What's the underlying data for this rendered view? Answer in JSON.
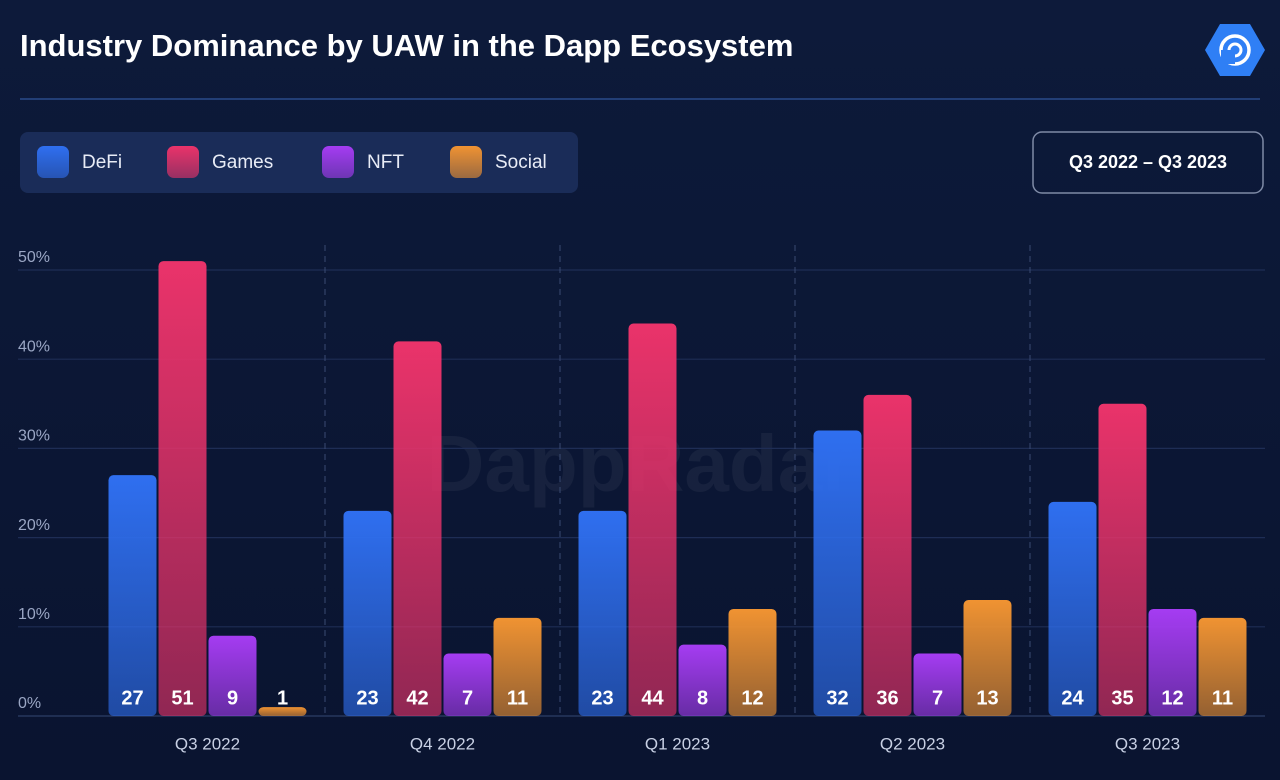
{
  "chart_data": {
    "type": "bar",
    "title": "Industry Dominance by UAW in the Dapp Ecosystem",
    "period": "Q3 2022 – Q3 2023",
    "watermark": "DappRadar",
    "categories": [
      "Q3 2022",
      "Q4 2022",
      "Q1 2023",
      "Q2 2023",
      "Q3 2023"
    ],
    "series": [
      {
        "name": "DeFi",
        "color": "#2f6ff0",
        "values": [
          27,
          23,
          23,
          32,
          24
        ]
      },
      {
        "name": "Games",
        "color": "#ea336a",
        "values": [
          51,
          42,
          44,
          36,
          35
        ]
      },
      {
        "name": "NFT",
        "color": "#a53cf2",
        "values": [
          9,
          7,
          8,
          7,
          12
        ]
      },
      {
        "name": "Social",
        "color": "#f09332",
        "values": [
          1,
          11,
          12,
          13,
          11
        ]
      }
    ],
    "ylim": [
      0,
      50
    ],
    "yticks": [
      {
        "value": 0,
        "label": "0%"
      },
      {
        "value": 10,
        "label": "10%"
      },
      {
        "value": 20,
        "label": "20%"
      },
      {
        "value": 30,
        "label": "30%"
      },
      {
        "value": 40,
        "label": "40%"
      },
      {
        "value": 50,
        "label": "50%"
      }
    ],
    "grid": true
  }
}
